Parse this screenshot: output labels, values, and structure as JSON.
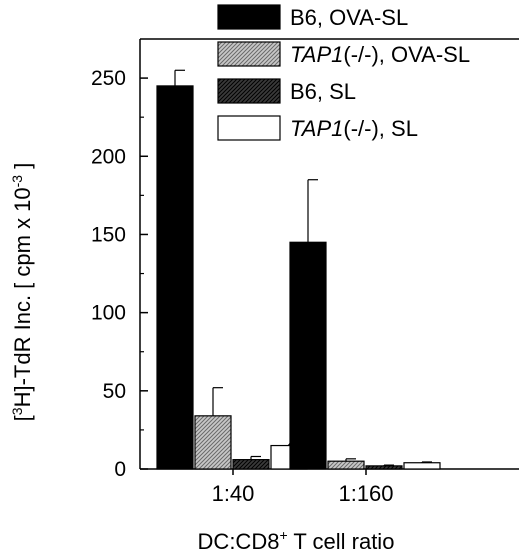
{
  "chart_data": {
    "type": "bar",
    "categories": [
      "1:40",
      "1:160"
    ],
    "series": [
      {
        "name": "B6, OVA-SL",
        "name_parts": [
          "",
          "B6, OVA-SL"
        ],
        "values": [
          245,
          145
        ],
        "errors": [
          10,
          40
        ],
        "fill": "black"
      },
      {
        "name": "TAP1(-/-), OVA-SL",
        "name_parts": [
          "TAP1",
          "(-/-), OVA-SL"
        ],
        "values": [
          34,
          5
        ],
        "errors": [
          18,
          1.5
        ],
        "fill": "light-hatch"
      },
      {
        "name": "B6, SL",
        "name_parts": [
          "",
          "B6, SL"
        ],
        "values": [
          6,
          2
        ],
        "errors": [
          2,
          0.5
        ],
        "fill": "dark-hatch"
      },
      {
        "name": "TAP1(-/-), SL",
        "name_parts": [
          "TAP1",
          "(-/-), SL"
        ],
        "values": [
          15,
          4
        ],
        "errors": [
          1,
          0.5
        ],
        "fill": "white"
      }
    ],
    "ylabel_parts": {
      "pre": "[",
      "sup1": "3",
      "mid": "H]-TdR Inc. [ cpm x 10",
      "sup2": "-3",
      "post": " ]"
    },
    "xlabel_parts": {
      "pre": "DC:CD8",
      "sup": "+",
      "post": " T cell ratio"
    },
    "yticks": [
      0,
      50,
      100,
      150,
      200,
      250
    ],
    "ylim": [
      0,
      275
    ],
    "grid": false,
    "legend_position": "top-right"
  }
}
